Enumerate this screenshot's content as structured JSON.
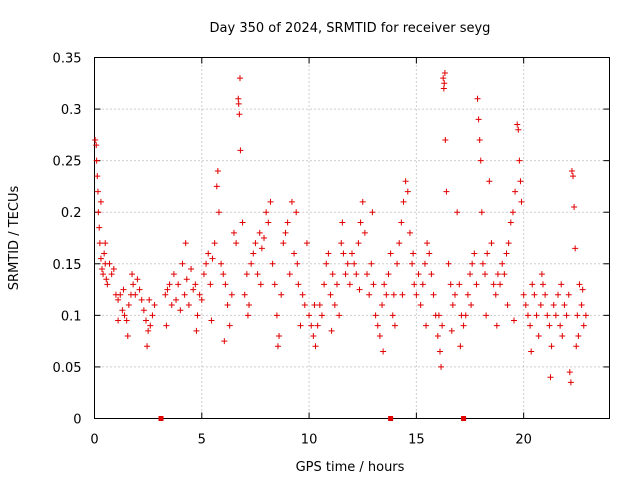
{
  "chart_data": {
    "type": "scatter",
    "title": "Day 350 of 2024, SRMTID for receiver seyg",
    "xlabel": "GPS time / hours",
    "ylabel": "SRMTID / TECUs",
    "xlim": [
      0,
      24
    ],
    "ylim": [
      0,
      0.35
    ],
    "x_ticks": [
      0,
      5,
      10,
      15,
      20
    ],
    "x_tick_labels": [
      "0",
      "5",
      "10",
      "15",
      "20"
    ],
    "y_ticks": [
      0,
      0.05,
      0.1,
      0.15,
      0.2,
      0.25,
      0.3,
      0.35
    ],
    "y_tick_labels": [
      "0",
      "0.05",
      "0.1",
      "0.15",
      "0.2",
      "0.25",
      "0.3",
      "0.35"
    ],
    "grid": true,
    "marker": "+",
    "color": "#e00000",
    "data_span_hours": [
      0,
      23
    ],
    "zero_value_markers_x": [
      3.1,
      13.8,
      17.2
    ],
    "series": [
      {
        "name": "SRMTID",
        "points": [
          [
            0.03,
            0.27
          ],
          [
            0.08,
            0.265
          ],
          [
            0.1,
            0.25
          ],
          [
            0.13,
            0.235
          ],
          [
            0.16,
            0.22
          ],
          [
            0.18,
            0.2
          ],
          [
            0.22,
            0.185
          ],
          [
            0.25,
            0.17
          ],
          [
            0.3,
            0.155
          ],
          [
            0.35,
            0.145
          ],
          [
            0.4,
            0.14
          ],
          [
            0.45,
            0.16
          ],
          [
            0.5,
            0.15
          ],
          [
            0.55,
            0.135
          ],
          [
            0.6,
            0.13
          ],
          [
            0.7,
            0.15
          ],
          [
            0.8,
            0.14
          ],
          [
            0.9,
            0.145
          ],
          [
            1.0,
            0.12
          ],
          [
            1.1,
            0.115
          ],
          [
            1.2,
            0.12
          ],
          [
            1.3,
            0.105
          ],
          [
            1.4,
            0.1
          ],
          [
            1.5,
            0.095
          ],
          [
            1.6,
            0.11
          ],
          [
            1.7,
            0.12
          ],
          [
            1.8,
            0.13
          ],
          [
            1.9,
            0.12
          ],
          [
            2.0,
            0.135
          ],
          [
            2.1,
            0.125
          ],
          [
            2.2,
            0.115
          ],
          [
            2.3,
            0.105
          ],
          [
            2.4,
            0.095
          ],
          [
            2.5,
            0.085
          ],
          [
            2.6,
            0.09
          ],
          [
            2.7,
            0.1
          ],
          [
            2.8,
            0.11
          ],
          [
            0.3,
            0.21
          ],
          [
            0.5,
            0.17
          ],
          [
            1.1,
            0.095
          ],
          [
            1.35,
            0.125
          ],
          [
            1.55,
            0.08
          ],
          [
            2.45,
            0.07
          ],
          [
            2.55,
            0.115
          ],
          [
            1.75,
            0.14
          ],
          [
            3.3,
            0.12
          ],
          [
            3.4,
            0.125
          ],
          [
            3.5,
            0.13
          ],
          [
            3.6,
            0.11
          ],
          [
            3.7,
            0.14
          ],
          [
            3.8,
            0.115
          ],
          [
            3.9,
            0.13
          ],
          [
            4.0,
            0.105
          ],
          [
            4.1,
            0.15
          ],
          [
            4.2,
            0.12
          ],
          [
            4.3,
            0.135
          ],
          [
            4.4,
            0.11
          ],
          [
            4.5,
            0.145
          ],
          [
            4.6,
            0.125
          ],
          [
            4.7,
            0.13
          ],
          [
            4.8,
            0.1
          ],
          [
            4.9,
            0.12
          ],
          [
            5.0,
            0.115
          ],
          [
            5.1,
            0.14
          ],
          [
            5.2,
            0.15
          ],
          [
            5.3,
            0.16
          ],
          [
            5.4,
            0.13
          ],
          [
            5.5,
            0.155
          ],
          [
            5.6,
            0.17
          ],
          [
            5.7,
            0.225
          ],
          [
            5.75,
            0.24
          ],
          [
            5.8,
            0.2
          ],
          [
            5.9,
            0.15
          ],
          [
            6.0,
            0.14
          ],
          [
            6.1,
            0.13
          ],
          [
            6.2,
            0.11
          ],
          [
            6.3,
            0.09
          ],
          [
            6.4,
            0.12
          ],
          [
            6.5,
            0.18
          ],
          [
            6.6,
            0.17
          ],
          [
            6.7,
            0.31
          ],
          [
            6.72,
            0.305
          ],
          [
            6.75,
            0.295
          ],
          [
            6.78,
            0.33
          ],
          [
            6.8,
            0.26
          ],
          [
            6.9,
            0.19
          ],
          [
            7.0,
            0.12
          ],
          [
            7.1,
            0.14
          ],
          [
            7.2,
            0.11
          ],
          [
            7.3,
            0.15
          ],
          [
            7.4,
            0.16
          ],
          [
            7.5,
            0.17
          ],
          [
            7.6,
            0.14
          ],
          [
            7.7,
            0.18
          ],
          [
            7.8,
            0.165
          ],
          [
            7.9,
            0.175
          ],
          [
            8.0,
            0.2
          ],
          [
            8.1,
            0.19
          ],
          [
            8.2,
            0.21
          ],
          [
            8.3,
            0.15
          ],
          [
            8.4,
            0.13
          ],
          [
            8.5,
            0.1
          ],
          [
            8.6,
            0.08
          ],
          [
            8.7,
            0.12
          ],
          [
            8.8,
            0.17
          ],
          [
            8.9,
            0.18
          ],
          [
            9.0,
            0.19
          ],
          [
            9.1,
            0.14
          ],
          [
            9.2,
            0.21
          ],
          [
            9.3,
            0.16
          ],
          [
            9.4,
            0.2
          ],
          [
            9.5,
            0.13
          ],
          [
            9.6,
            0.09
          ],
          [
            9.7,
            0.12
          ],
          [
            9.8,
            0.11
          ],
          [
            9.9,
            0.17
          ],
          [
            3.35,
            0.09
          ],
          [
            4.25,
            0.17
          ],
          [
            4.75,
            0.085
          ],
          [
            5.45,
            0.095
          ],
          [
            6.05,
            0.075
          ],
          [
            7.15,
            0.1
          ],
          [
            7.75,
            0.13
          ],
          [
            8.55,
            0.07
          ],
          [
            9.45,
            0.15
          ],
          [
            10.0,
            0.1
          ],
          [
            10.1,
            0.09
          ],
          [
            10.2,
            0.08
          ],
          [
            10.3,
            0.07
          ],
          [
            10.4,
            0.09
          ],
          [
            10.5,
            0.11
          ],
          [
            10.6,
            0.1
          ],
          [
            10.7,
            0.13
          ],
          [
            10.8,
            0.15
          ],
          [
            10.9,
            0.16
          ],
          [
            11.0,
            0.12
          ],
          [
            11.1,
            0.14
          ],
          [
            11.2,
            0.11
          ],
          [
            11.3,
            0.13
          ],
          [
            11.4,
            0.1
          ],
          [
            11.5,
            0.17
          ],
          [
            11.6,
            0.16
          ],
          [
            11.7,
            0.14
          ],
          [
            11.8,
            0.15
          ],
          [
            11.9,
            0.13
          ],
          [
            12.0,
            0.16
          ],
          [
            12.1,
            0.15
          ],
          [
            12.2,
            0.14
          ],
          [
            12.3,
            0.17
          ],
          [
            12.4,
            0.19
          ],
          [
            12.5,
            0.21
          ],
          [
            12.6,
            0.18
          ],
          [
            12.7,
            0.14
          ],
          [
            12.8,
            0.12
          ],
          [
            12.9,
            0.15
          ],
          [
            13.0,
            0.13
          ],
          [
            13.1,
            0.1
          ],
          [
            13.2,
            0.09
          ],
          [
            13.3,
            0.08
          ],
          [
            13.4,
            0.11
          ],
          [
            13.5,
            0.13
          ],
          [
            13.6,
            0.12
          ],
          [
            13.7,
            0.14
          ],
          [
            13.8,
            0.16
          ],
          [
            13.9,
            0.1
          ],
          [
            14.0,
            0.09
          ],
          [
            14.1,
            0.15
          ],
          [
            14.2,
            0.17
          ],
          [
            14.3,
            0.19
          ],
          [
            14.4,
            0.21
          ],
          [
            14.5,
            0.23
          ],
          [
            14.6,
            0.22
          ],
          [
            14.7,
            0.18
          ],
          [
            14.8,
            0.15
          ],
          [
            14.9,
            0.13
          ],
          [
            10.25,
            0.11
          ],
          [
            11.05,
            0.085
          ],
          [
            11.55,
            0.19
          ],
          [
            12.35,
            0.125
          ],
          [
            12.95,
            0.2
          ],
          [
            13.45,
            0.065
          ],
          [
            13.95,
            0.12
          ],
          [
            14.35,
            0.12
          ],
          [
            14.85,
            0.16
          ],
          [
            15.0,
            0.12
          ],
          [
            15.1,
            0.14
          ],
          [
            15.2,
            0.11
          ],
          [
            15.3,
            0.13
          ],
          [
            15.4,
            0.15
          ],
          [
            15.5,
            0.17
          ],
          [
            15.6,
            0.16
          ],
          [
            15.7,
            0.14
          ],
          [
            15.8,
            0.12
          ],
          [
            15.9,
            0.1
          ],
          [
            16.0,
            0.08
          ],
          [
            16.1,
            0.065
          ],
          [
            16.15,
            0.05
          ],
          [
            16.2,
            0.09
          ],
          [
            16.25,
            0.33
          ],
          [
            16.28,
            0.32
          ],
          [
            16.3,
            0.325
          ],
          [
            16.33,
            0.335
          ],
          [
            16.35,
            0.27
          ],
          [
            16.4,
            0.22
          ],
          [
            16.5,
            0.15
          ],
          [
            16.6,
            0.13
          ],
          [
            16.7,
            0.11
          ],
          [
            16.8,
            0.12
          ],
          [
            16.9,
            0.2
          ],
          [
            17.0,
            0.13
          ],
          [
            17.1,
            0.1
          ],
          [
            17.2,
            0.09
          ],
          [
            17.3,
            0.1
          ],
          [
            17.4,
            0.12
          ],
          [
            17.5,
            0.14
          ],
          [
            17.6,
            0.15
          ],
          [
            17.7,
            0.16
          ],
          [
            17.8,
            0.13
          ],
          [
            17.85,
            0.31
          ],
          [
            17.9,
            0.29
          ],
          [
            17.95,
            0.27
          ],
          [
            18.0,
            0.25
          ],
          [
            18.05,
            0.2
          ],
          [
            18.1,
            0.15
          ],
          [
            18.2,
            0.14
          ],
          [
            18.3,
            0.16
          ],
          [
            18.4,
            0.23
          ],
          [
            18.5,
            0.17
          ],
          [
            18.6,
            0.13
          ],
          [
            18.7,
            0.12
          ],
          [
            18.8,
            0.14
          ],
          [
            18.9,
            0.13
          ],
          [
            19.0,
            0.15
          ],
          [
            19.1,
            0.14
          ],
          [
            19.2,
            0.16
          ],
          [
            19.3,
            0.17
          ],
          [
            19.4,
            0.19
          ],
          [
            19.5,
            0.2
          ],
          [
            19.6,
            0.22
          ],
          [
            19.7,
            0.285
          ],
          [
            19.75,
            0.28
          ],
          [
            19.8,
            0.25
          ],
          [
            19.85,
            0.23
          ],
          [
            19.9,
            0.21
          ],
          [
            15.45,
            0.09
          ],
          [
            16.05,
            0.1
          ],
          [
            16.65,
            0.085
          ],
          [
            17.05,
            0.07
          ],
          [
            17.55,
            0.11
          ],
          [
            18.25,
            0.1
          ],
          [
            18.75,
            0.09
          ],
          [
            19.25,
            0.11
          ],
          [
            19.55,
            0.095
          ],
          [
            20.0,
            0.12
          ],
          [
            20.1,
            0.11
          ],
          [
            20.2,
            0.1
          ],
          [
            20.3,
            0.09
          ],
          [
            20.4,
            0.13
          ],
          [
            20.5,
            0.12
          ],
          [
            20.6,
            0.1
          ],
          [
            20.7,
            0.08
          ],
          [
            20.8,
            0.11
          ],
          [
            20.9,
            0.13
          ],
          [
            21.0,
            0.12
          ],
          [
            21.1,
            0.1
          ],
          [
            21.2,
            0.09
          ],
          [
            21.3,
            0.07
          ],
          [
            21.4,
            0.11
          ],
          [
            21.5,
            0.1
          ],
          [
            21.6,
            0.12
          ],
          [
            21.7,
            0.09
          ],
          [
            21.8,
            0.08
          ],
          [
            21.9,
            0.11
          ],
          [
            22.0,
            0.1
          ],
          [
            22.1,
            0.12
          ],
          [
            22.15,
            0.045
          ],
          [
            22.2,
            0.035
          ],
          [
            22.25,
            0.24
          ],
          [
            22.3,
            0.235
          ],
          [
            22.35,
            0.205
          ],
          [
            22.4,
            0.165
          ],
          [
            22.45,
            0.07
          ],
          [
            22.5,
            0.1
          ],
          [
            22.6,
            0.13
          ],
          [
            22.7,
            0.11
          ],
          [
            22.8,
            0.09
          ],
          [
            22.9,
            0.1
          ],
          [
            20.35,
            0.065
          ],
          [
            20.85,
            0.14
          ],
          [
            21.25,
            0.04
          ],
          [
            21.75,
            0.13
          ],
          [
            22.55,
            0.08
          ],
          [
            22.75,
            0.125
          ]
        ]
      }
    ]
  }
}
